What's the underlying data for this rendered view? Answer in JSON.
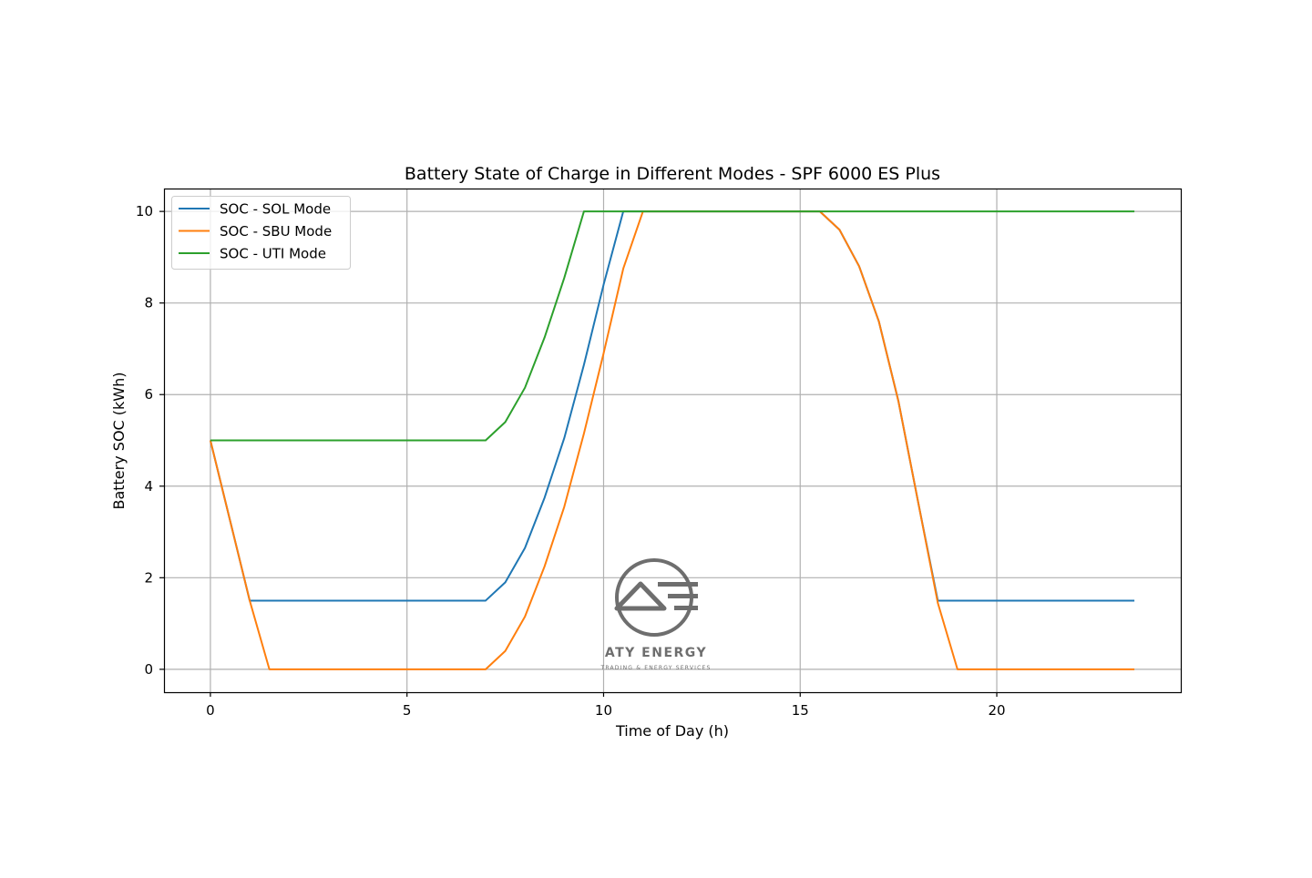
{
  "chart_data": {
    "type": "line",
    "title": "Battery State of Charge in Different Modes - SPF 6000 ES Plus",
    "xlabel": "Time of Day (h)",
    "ylabel": "Battery SOC (kWh)",
    "xlim": [
      -1.18,
      24.68
    ],
    "ylim": [
      -0.5,
      10.5
    ],
    "xticks": [
      0,
      5,
      10,
      15,
      20
    ],
    "yticks": [
      0,
      2,
      4,
      6,
      8,
      10
    ],
    "grid": true,
    "legend_position": "upper-left",
    "x": [
      0,
      0.5,
      1,
      1.5,
      2,
      2.5,
      3,
      3.5,
      4,
      4.5,
      5,
      5.5,
      6,
      6.5,
      7,
      7.5,
      8,
      8.5,
      9,
      9.5,
      10,
      10.5,
      11,
      11.5,
      12,
      12.5,
      13,
      13.5,
      14,
      14.5,
      15,
      15.5,
      16,
      16.5,
      17,
      17.5,
      18,
      18.5,
      19,
      19.5,
      20,
      20.5,
      21,
      21.5,
      22,
      22.5,
      23,
      23.5
    ],
    "series": [
      {
        "name": "SOC - SOL Mode",
        "color": "#1f77b4",
        "values": [
          5,
          3.25,
          1.5,
          1.5,
          1.5,
          1.5,
          1.5,
          1.5,
          1.5,
          1.5,
          1.5,
          1.5,
          1.5,
          1.5,
          1.5,
          1.9,
          2.65,
          3.75,
          5.05,
          6.65,
          8.4,
          10,
          10,
          10,
          10,
          10,
          10,
          10,
          10,
          10,
          10,
          10,
          9.6,
          8.8,
          7.6,
          5.85,
          3.65,
          1.5,
          1.5,
          1.5,
          1.5,
          1.5,
          1.5,
          1.5,
          1.5,
          1.5,
          1.5,
          1.5
        ]
      },
      {
        "name": "SOC - SBU Mode",
        "color": "#ff7f0e",
        "values": [
          5,
          3.25,
          1.5,
          0,
          0,
          0,
          0,
          0,
          0,
          0,
          0,
          0,
          0,
          0,
          0,
          0.4,
          1.15,
          2.25,
          3.55,
          5.15,
          6.9,
          8.75,
          10,
          10,
          10,
          10,
          10,
          10,
          10,
          10,
          10,
          10,
          9.6,
          8.8,
          7.6,
          5.85,
          3.65,
          1.45,
          0,
          0,
          0,
          0,
          0,
          0,
          0,
          0,
          0,
          0
        ]
      },
      {
        "name": "SOC - UTI Mode",
        "color": "#2ca02c",
        "values": [
          5,
          5,
          5,
          5,
          5,
          5,
          5,
          5,
          5,
          5,
          5,
          5,
          5,
          5,
          5,
          5.4,
          6.15,
          7.25,
          8.55,
          10,
          10,
          10,
          10,
          10,
          10,
          10,
          10,
          10,
          10,
          10,
          10,
          10,
          10,
          10,
          10,
          10,
          10,
          10,
          10,
          10,
          10,
          10,
          10,
          10,
          10,
          10,
          10,
          10
        ]
      }
    ]
  },
  "watermark": {
    "brand": "ATY ENERGY",
    "tagline": "TRADING & ENERGY SERVICES"
  }
}
